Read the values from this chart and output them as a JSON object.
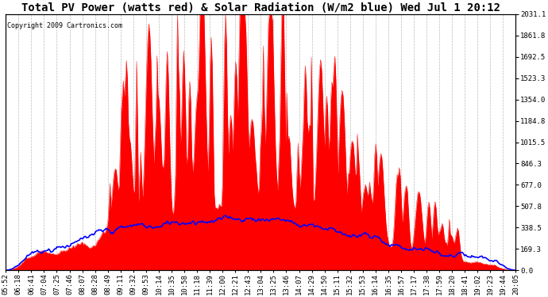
{
  "title": "Total PV Power (watts red) & Solar Radiation (W/m2 blue) Wed Jul 1 20:12",
  "copyright": "Copyright 2009 Cartronics.com",
  "right_ticks": [
    0.0,
    169.3,
    338.5,
    507.8,
    677.0,
    846.3,
    1015.5,
    1184.8,
    1354.0,
    1523.3,
    1692.5,
    1861.8,
    2031.1
  ],
  "ylim_max": 2031.1,
  "x_tick_labels": [
    "05:52",
    "06:18",
    "06:41",
    "07:04",
    "07:25",
    "07:46",
    "08:07",
    "08:28",
    "08:49",
    "09:11",
    "09:32",
    "09:53",
    "10:14",
    "10:35",
    "10:58",
    "11:18",
    "11:39",
    "12:00",
    "12:21",
    "12:43",
    "13:04",
    "13:25",
    "13:46",
    "14:07",
    "14:29",
    "14:50",
    "15:11",
    "15:32",
    "15:53",
    "16:14",
    "16:35",
    "16:57",
    "17:17",
    "17:38",
    "17:59",
    "18:20",
    "18:41",
    "19:02",
    "19:23",
    "19:44",
    "20:05"
  ],
  "bg_color": "#ffffff",
  "grid_color": "#aaaaaa",
  "red_color": "#ff0000",
  "blue_color": "#0000ff",
  "title_fontsize": 10,
  "tick_fontsize": 6.5,
  "copyright_fontsize": 6
}
